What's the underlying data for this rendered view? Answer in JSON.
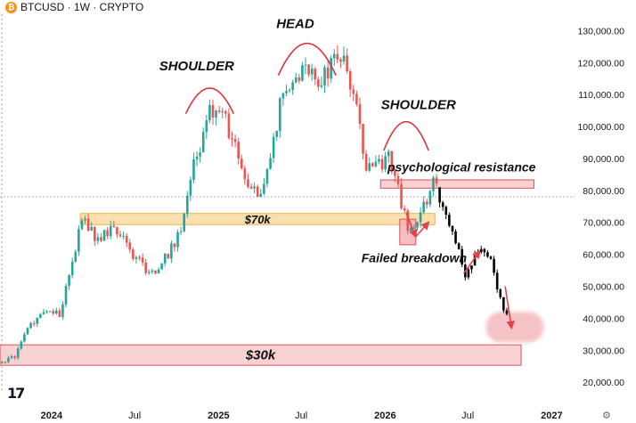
{
  "header": {
    "symbol_icon": "bitcoin-icon",
    "symbol_glyph": "₿",
    "ticker": "BTCUSD · 1W · CRYPTO"
  },
  "logo": {
    "icon": "tradingview-logo-icon",
    "text": "17"
  },
  "settings_icon": "gear-icon",
  "chart_data": {
    "type": "candlestick",
    "interval": "1W",
    "y_axis": {
      "ticks": [
        20000,
        30000,
        40000,
        50000,
        60000,
        70000,
        80000,
        90000,
        100000,
        110000,
        120000,
        130000
      ],
      "tick_labels": [
        "20,000.00",
        "30,000.00",
        "40,000.00",
        "50,000.00",
        "60,000.00",
        "70,000.00",
        "80,000.00",
        "90,000.00",
        "100,000.00",
        "110,000.00",
        "120,000.00",
        "130,000.00"
      ],
      "range": [
        17000,
        134000
      ],
      "position": "right"
    },
    "x_axis": {
      "tick_labels": [
        "2024",
        "Jul",
        "2025",
        "Jul",
        "2026",
        "Jul",
        "2027"
      ],
      "tick_dates": [
        "2024-01-01",
        "2024-07-01",
        "2025-01-01",
        "2025-07-01",
        "2026-01-01",
        "2026-07-01",
        "2027-01-01"
      ],
      "range": [
        "2023-09-10",
        "2027-02-20"
      ]
    },
    "reference_line": {
      "price": 78000,
      "style": "dotted",
      "color": "#c9a7a7"
    },
    "candle_colors": {
      "up": "#26a69a",
      "down": "#ef5350",
      "projection": "#000000"
    },
    "candle_anchors": [
      [
        "2023-09-11",
        26000
      ],
      [
        "2023-10-16",
        28500
      ],
      [
        "2023-11-13",
        37000
      ],
      [
        "2023-12-25",
        43000
      ],
      [
        "2024-01-22",
        41000
      ],
      [
        "2024-03-11",
        71000
      ],
      [
        "2024-04-15",
        64000
      ],
      [
        "2024-05-20",
        69000
      ],
      [
        "2024-06-24",
        61000
      ],
      [
        "2024-08-05",
        54000
      ],
      [
        "2024-09-02",
        57000
      ],
      [
        "2024-10-14",
        67000
      ],
      [
        "2024-11-11",
        88000
      ],
      [
        "2024-12-16",
        104000
      ],
      [
        "2025-01-20",
        102000
      ],
      [
        "2025-03-10",
        82000
      ],
      [
        "2025-04-07",
        77000
      ],
      [
        "2025-05-19",
        106000
      ],
      [
        "2025-07-14",
        118000
      ],
      [
        "2025-08-11",
        114000
      ],
      [
        "2025-10-06",
        124000
      ],
      [
        "2025-10-27",
        110000
      ],
      [
        "2025-11-24",
        88000
      ],
      [
        "2025-12-22",
        88000
      ],
      [
        "2026-01-12",
        90000
      ],
      [
        "2026-02-02",
        80000
      ],
      [
        "2026-02-23",
        68000
      ],
      [
        "2026-03-16",
        70000
      ],
      [
        "2026-04-13",
        80000
      ],
      [
        "2026-04-20",
        82000
      ]
    ],
    "projection_anchors": [
      [
        "2026-04-27",
        81000
      ],
      [
        "2026-05-25",
        70000
      ],
      [
        "2026-06-29",
        54000
      ],
      [
        "2026-07-27",
        61000
      ],
      [
        "2026-08-24",
        58000
      ],
      [
        "2026-09-21",
        42000
      ]
    ],
    "zones": [
      {
        "label": "$70k",
        "low": 69300,
        "high": 72800,
        "start": "2024-03-04",
        "end": "2026-04-20",
        "fill": "#f9dba0",
        "stroke": "#e8b454"
      },
      {
        "label": "",
        "low": 80700,
        "high": 83300,
        "start": "2025-12-22",
        "end": "2026-11-23",
        "fill": "#f7c9cb",
        "stroke": "#d9535a"
      },
      {
        "label": "",
        "low": 63000,
        "high": 71000,
        "start": "2026-02-02",
        "end": "2026-03-09",
        "fill": "#f3b3b6",
        "stroke": "#d9535a"
      },
      {
        "label": "$30k",
        "low": 25300,
        "high": 31700,
        "start": "2023-09-10",
        "end": "2026-10-26",
        "fill": "#f7c9cb",
        "stroke": "#d9535a"
      }
    ],
    "target_zone": {
      "low": 32500,
      "high": 42000,
      "start": "2026-08-10",
      "end": "2026-12-14",
      "fill": "#f5c3c5"
    },
    "annotations": [
      {
        "text": "SHOULDER",
        "date": "2024-11-14",
        "price": 117500
      },
      {
        "text": "HEAD",
        "date": "2025-06-18",
        "price": 130800
      },
      {
        "text": "SHOULDER",
        "date": "2026-03-15",
        "price": 105400
      },
      {
        "text": "psychological resistance",
        "date": "2026-01-06",
        "price": 86000
      },
      {
        "text": "Failed breakdown",
        "date": "2025-11-10",
        "price": 57500
      }
    ],
    "arcs": [
      {
        "start": "2024-10-21",
        "end": "2025-02-03",
        "base": 104000,
        "peak": 112000
      },
      {
        "start": "2025-05-12",
        "end": "2025-09-15",
        "base": 116000,
        "peak": 126000
      },
      {
        "start": "2025-12-29",
        "end": "2026-04-06",
        "base": 92500,
        "peak": 101500
      }
    ],
    "arrows": [
      {
        "from": [
          "2026-02-16",
          73000
        ],
        "to": [
          "2026-03-09",
          65500
        ]
      },
      {
        "from": [
          "2026-03-09",
          65500
        ],
        "to": [
          "2026-04-06",
          70000
        ]
      },
      {
        "from": [
          "2026-06-22",
          54000
        ],
        "to": [
          "2026-07-27",
          61000
        ]
      },
      {
        "from": [
          "2026-09-21",
          50000
        ],
        "to": [
          "2026-10-05",
          37000
        ]
      }
    ]
  }
}
